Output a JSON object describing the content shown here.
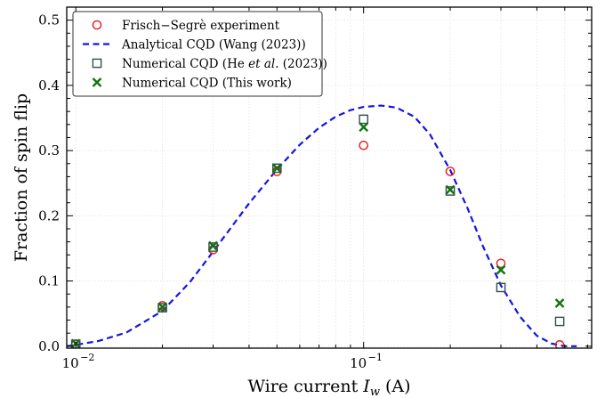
{
  "chart_data": {
    "type": "scatter",
    "xlabel": "Wire current I_w (A)",
    "xlabel_parts": {
      "prefix": "Wire current ",
      "symbol": "I",
      "subscript": "w",
      "suffix": " (A)"
    },
    "ylabel": "Fraction of spin flip",
    "xscale": "log",
    "xlim": [
      0.0093,
      0.62
    ],
    "ylim": [
      -0.003,
      0.52
    ],
    "x_ticks": [
      {
        "value": 0.01,
        "base": "10",
        "exp": "−2"
      },
      {
        "value": 0.1,
        "base": "10",
        "exp": "−1"
      }
    ],
    "y_ticks": [
      0.0,
      0.1,
      0.2,
      0.3,
      0.4,
      0.5
    ],
    "y_tick_labels": [
      "0.0",
      "0.1",
      "0.2",
      "0.3",
      "0.4",
      "0.5"
    ],
    "grid": true,
    "legend_position": "top-left",
    "series": [
      {
        "name": "Frisch−Segrè experiment",
        "marker": "circle",
        "color": "#e41a1c",
        "points": [
          [
            0.01,
            0.003
          ],
          [
            0.02,
            0.062
          ],
          [
            0.03,
            0.148
          ],
          [
            0.05,
            0.268
          ],
          [
            0.1,
            0.308
          ],
          [
            0.2,
            0.268
          ],
          [
            0.3,
            0.127
          ],
          [
            0.48,
            0.002
          ]
        ]
      },
      {
        "name": "Analytical CQD (Wang (2023))",
        "style": "dashed-line",
        "color": "#1515e0",
        "points": [
          [
            0.0093,
            0.0
          ],
          [
            0.01,
            0.002
          ],
          [
            0.012,
            0.008
          ],
          [
            0.015,
            0.021
          ],
          [
            0.02,
            0.054
          ],
          [
            0.025,
            0.099
          ],
          [
            0.03,
            0.145
          ],
          [
            0.04,
            0.219
          ],
          [
            0.05,
            0.271
          ],
          [
            0.06,
            0.309
          ],
          [
            0.07,
            0.335
          ],
          [
            0.08,
            0.352
          ],
          [
            0.09,
            0.362
          ],
          [
            0.1,
            0.367
          ],
          [
            0.115,
            0.369
          ],
          [
            0.13,
            0.366
          ],
          [
            0.15,
            0.352
          ],
          [
            0.17,
            0.325
          ],
          [
            0.2,
            0.27
          ],
          [
            0.23,
            0.211
          ],
          [
            0.26,
            0.153
          ],
          [
            0.3,
            0.093
          ],
          [
            0.35,
            0.045
          ],
          [
            0.4,
            0.016
          ],
          [
            0.45,
            0.004
          ],
          [
            0.5,
            0.0
          ],
          [
            0.55,
            0.0
          ]
        ]
      },
      {
        "name": "Numerical CQD (He et al. (2023))",
        "name_parts": {
          "pre": "Numerical CQD (He ",
          "italic": "et al.",
          "post": " (2023))"
        },
        "marker": "square",
        "color": "#2f4f4f",
        "points": [
          [
            0.01,
            0.003
          ],
          [
            0.02,
            0.059
          ],
          [
            0.03,
            0.152
          ],
          [
            0.05,
            0.273
          ],
          [
            0.1,
            0.348
          ],
          [
            0.2,
            0.238
          ],
          [
            0.3,
            0.09
          ],
          [
            0.48,
            0.038
          ]
        ]
      },
      {
        "name": "Numerical CQD (This work)",
        "marker": "x",
        "color": "#127312",
        "points": [
          [
            0.01,
            0.004
          ],
          [
            0.02,
            0.06
          ],
          [
            0.03,
            0.154
          ],
          [
            0.05,
            0.273
          ],
          [
            0.1,
            0.336
          ],
          [
            0.2,
            0.24
          ],
          [
            0.3,
            0.117
          ],
          [
            0.48,
            0.066
          ]
        ]
      }
    ]
  }
}
